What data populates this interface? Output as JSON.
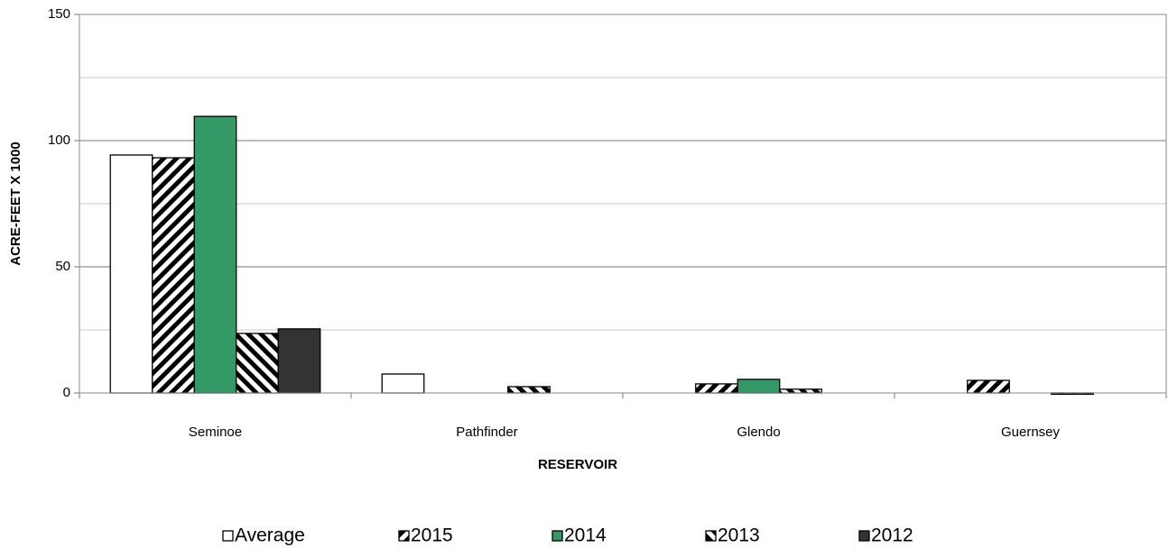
{
  "chart_data": {
    "type": "bar",
    "categories": [
      "Seminoe",
      "Pathfinder",
      "Glendo",
      "Guernsey"
    ],
    "x_label": "RESERVOIR",
    "y_label": "ACRE-FEET X 1000",
    "series": [
      {
        "name": "Average",
        "color": "#ffffff",
        "hatch": "none",
        "values": [
          94.3,
          7.5,
          0,
          0
        ]
      },
      {
        "name": "2015",
        "color": "#ffffff",
        "hatch": "forward",
        "values": [
          93.2,
          0,
          3.6,
          5
        ]
      },
      {
        "name": "2014",
        "color": "#339966",
        "hatch": "none",
        "values": [
          109.6,
          0,
          5.4,
          0
        ]
      },
      {
        "name": "2013",
        "color": "#ffffff",
        "hatch": "backward",
        "values": [
          23.6,
          2.5,
          1.5,
          -0.5
        ]
      },
      {
        "name": "2012",
        "color": "#333333",
        "hatch": "none",
        "values": [
          25.4,
          0,
          0,
          0
        ]
      }
    ],
    "ylim": [
      0,
      150
    ],
    "yticks": [
      0,
      50,
      100,
      150
    ],
    "minor_yticks": [
      25,
      75,
      125
    ],
    "grid": true,
    "legend": "bottom"
  }
}
